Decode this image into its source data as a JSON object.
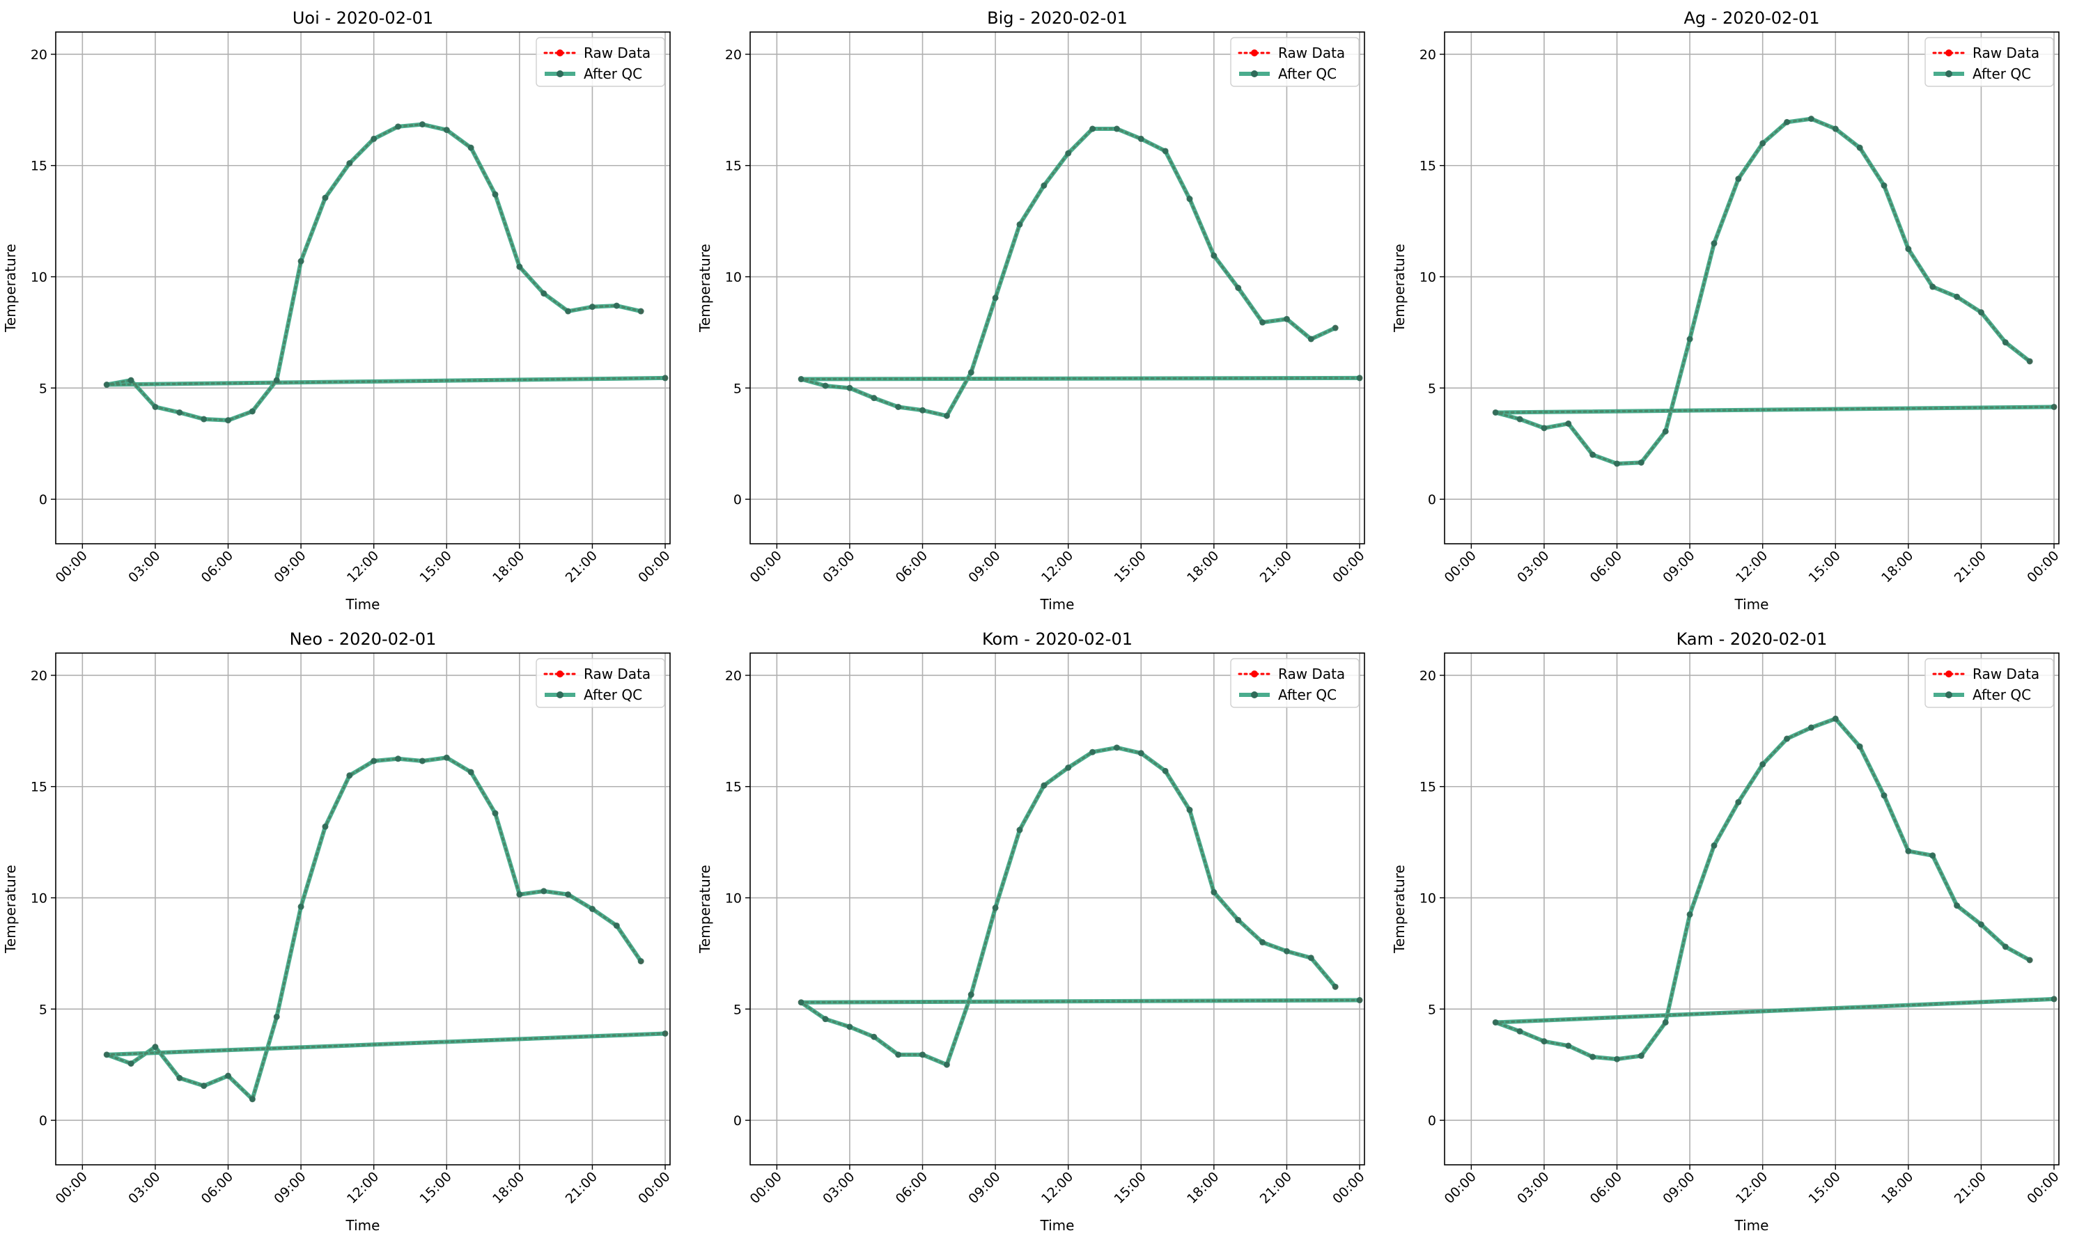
{
  "colors": {
    "raw": "#ff0000",
    "qc": "#2a9d79",
    "grid": "#b0b0b0",
    "axes": "#000000",
    "legend_border": "#d0d0d0"
  },
  "chart_data": [
    {
      "type": "line",
      "title": "Uoi - 2020-02-01",
      "xlabel": "Time",
      "ylabel": "Temperature",
      "x": [
        "00:00",
        "01:00",
        "02:00",
        "03:00",
        "04:00",
        "05:00",
        "06:00",
        "07:00",
        "08:00",
        "09:00",
        "10:00",
        "11:00",
        "12:00",
        "13:00",
        "14:00",
        "15:00",
        "16:00",
        "17:00",
        "18:00",
        "19:00",
        "20:00",
        "21:00",
        "22:00",
        "23:00"
      ],
      "xticks": [
        "00:00",
        "03:00",
        "06:00",
        "09:00",
        "12:00",
        "15:00",
        "18:00",
        "21:00",
        "00:00"
      ],
      "yticks": [
        0,
        5,
        10,
        15,
        20
      ],
      "ylim": [
        -2,
        21
      ],
      "grid": true,
      "legend_position": "upper right",
      "series": [
        {
          "name": "Raw Data",
          "style": "dotted",
          "values": [
            5.45,
            5.15,
            5.35,
            4.15,
            3.9,
            3.6,
            3.55,
            3.95,
            5.35,
            10.7,
            13.55,
            15.1,
            16.2,
            16.75,
            16.85,
            16.6,
            15.8,
            13.7,
            10.45,
            9.25,
            8.45,
            8.65,
            8.7,
            8.45
          ]
        },
        {
          "name": "After QC",
          "style": "solid",
          "values": [
            5.45,
            5.15,
            5.35,
            4.15,
            3.9,
            3.6,
            3.55,
            3.95,
            5.35,
            10.7,
            13.55,
            15.1,
            16.2,
            16.75,
            16.85,
            16.6,
            15.8,
            13.7,
            10.45,
            9.25,
            8.45,
            8.65,
            8.7,
            8.45
          ]
        }
      ]
    },
    {
      "type": "line",
      "title": "Big - 2020-02-01",
      "xlabel": "Time",
      "ylabel": "Temperature",
      "x": [
        "00:00",
        "01:00",
        "02:00",
        "03:00",
        "04:00",
        "05:00",
        "06:00",
        "07:00",
        "08:00",
        "09:00",
        "10:00",
        "11:00",
        "12:00",
        "13:00",
        "14:00",
        "15:00",
        "16:00",
        "17:00",
        "18:00",
        "19:00",
        "20:00",
        "21:00",
        "22:00",
        "23:00"
      ],
      "xticks": [
        "00:00",
        "03:00",
        "06:00",
        "09:00",
        "12:00",
        "15:00",
        "18:00",
        "21:00",
        "00:00"
      ],
      "yticks": [
        0,
        5,
        10,
        15,
        20
      ],
      "ylim": [
        -2,
        21
      ],
      "grid": true,
      "legend_position": "upper right",
      "series": [
        {
          "name": "Raw Data",
          "style": "dotted",
          "values": [
            5.45,
            5.4,
            5.1,
            5.0,
            4.55,
            4.15,
            4.0,
            3.75,
            5.7,
            9.05,
            12.35,
            14.1,
            15.55,
            16.65,
            16.65,
            16.2,
            15.65,
            13.5,
            10.95,
            9.5,
            7.95,
            8.1,
            7.2,
            7.7
          ]
        },
        {
          "name": "After QC",
          "style": "solid",
          "values": [
            5.45,
            5.4,
            5.1,
            5.0,
            4.55,
            4.15,
            4.0,
            3.75,
            5.7,
            9.05,
            12.35,
            14.1,
            15.55,
            16.65,
            16.65,
            16.2,
            15.65,
            13.5,
            10.95,
            9.5,
            7.95,
            8.1,
            7.2,
            7.7
          ]
        }
      ]
    },
    {
      "type": "line",
      "title": "Ag - 2020-02-01",
      "xlabel": "Time",
      "ylabel": "Temperature",
      "x": [
        "00:00",
        "01:00",
        "02:00",
        "03:00",
        "04:00",
        "05:00",
        "06:00",
        "07:00",
        "08:00",
        "09:00",
        "10:00",
        "11:00",
        "12:00",
        "13:00",
        "14:00",
        "15:00",
        "16:00",
        "17:00",
        "18:00",
        "19:00",
        "20:00",
        "21:00",
        "22:00",
        "23:00"
      ],
      "xticks": [
        "00:00",
        "03:00",
        "06:00",
        "09:00",
        "12:00",
        "15:00",
        "18:00",
        "21:00",
        "00:00"
      ],
      "yticks": [
        0,
        5,
        10,
        15,
        20
      ],
      "ylim": [
        -2,
        21
      ],
      "grid": true,
      "legend_position": "upper right",
      "series": [
        {
          "name": "Raw Data",
          "style": "dotted",
          "values": [
            4.15,
            3.9,
            3.6,
            3.2,
            3.4,
            2.0,
            1.6,
            1.65,
            3.05,
            7.2,
            11.5,
            14.4,
            16.0,
            16.95,
            17.1,
            16.65,
            15.8,
            14.1,
            11.25,
            9.55,
            9.1,
            8.4,
            7.05,
            6.2
          ]
        },
        {
          "name": "After QC",
          "style": "solid",
          "values": [
            4.15,
            3.9,
            3.6,
            3.2,
            3.4,
            2.0,
            1.6,
            1.65,
            3.05,
            7.2,
            11.5,
            14.4,
            16.0,
            16.95,
            17.1,
            16.65,
            15.8,
            14.1,
            11.25,
            9.55,
            9.1,
            8.4,
            7.05,
            6.2
          ]
        }
      ]
    },
    {
      "type": "line",
      "title": "Neo - 2020-02-01",
      "xlabel": "Time",
      "ylabel": "Temperature",
      "x": [
        "00:00",
        "01:00",
        "02:00",
        "03:00",
        "04:00",
        "05:00",
        "06:00",
        "07:00",
        "08:00",
        "09:00",
        "10:00",
        "11:00",
        "12:00",
        "13:00",
        "14:00",
        "15:00",
        "16:00",
        "17:00",
        "18:00",
        "19:00",
        "20:00",
        "21:00",
        "22:00",
        "23:00"
      ],
      "xticks": [
        "00:00",
        "03:00",
        "06:00",
        "09:00",
        "12:00",
        "15:00",
        "18:00",
        "21:00",
        "00:00"
      ],
      "yticks": [
        0,
        5,
        10,
        15,
        20
      ],
      "ylim": [
        -2,
        21
      ],
      "grid": true,
      "legend_position": "upper right",
      "series": [
        {
          "name": "Raw Data",
          "style": "dotted",
          "values": [
            3.9,
            2.95,
            2.55,
            3.3,
            1.9,
            1.55,
            2.0,
            0.95,
            4.65,
            9.6,
            13.2,
            15.5,
            16.15,
            16.25,
            16.15,
            16.3,
            15.65,
            13.8,
            10.15,
            10.3,
            10.15,
            9.5,
            8.75,
            7.15
          ]
        },
        {
          "name": "After QC",
          "style": "solid",
          "values": [
            3.9,
            2.95,
            2.55,
            3.3,
            1.9,
            1.55,
            2.0,
            0.95,
            4.65,
            9.6,
            13.2,
            15.5,
            16.15,
            16.25,
            16.15,
            16.3,
            15.65,
            13.8,
            10.15,
            10.3,
            10.15,
            9.5,
            8.75,
            7.15
          ]
        }
      ]
    },
    {
      "type": "line",
      "title": "Kom - 2020-02-01",
      "xlabel": "Time",
      "ylabel": "Temperature",
      "x": [
        "00:00",
        "01:00",
        "02:00",
        "03:00",
        "04:00",
        "05:00",
        "06:00",
        "07:00",
        "08:00",
        "09:00",
        "10:00",
        "11:00",
        "12:00",
        "13:00",
        "14:00",
        "15:00",
        "16:00",
        "17:00",
        "18:00",
        "19:00",
        "20:00",
        "21:00",
        "22:00",
        "23:00"
      ],
      "xticks": [
        "00:00",
        "03:00",
        "06:00",
        "09:00",
        "12:00",
        "15:00",
        "18:00",
        "21:00",
        "00:00"
      ],
      "yticks": [
        0,
        5,
        10,
        15,
        20
      ],
      "ylim": [
        -2,
        21
      ],
      "grid": true,
      "legend_position": "upper right",
      "series": [
        {
          "name": "Raw Data",
          "style": "dotted",
          "values": [
            5.4,
            5.3,
            4.55,
            4.2,
            3.75,
            2.95,
            2.95,
            2.5,
            5.65,
            9.55,
            13.05,
            15.05,
            15.85,
            16.55,
            16.75,
            16.5,
            15.7,
            13.95,
            10.25,
            9.0,
            8.0,
            7.6,
            7.3,
            6.0
          ]
        },
        {
          "name": "After QC",
          "style": "solid",
          "values": [
            5.4,
            5.3,
            4.55,
            4.2,
            3.75,
            2.95,
            2.95,
            2.5,
            5.65,
            9.55,
            13.05,
            15.05,
            15.85,
            16.55,
            16.75,
            16.5,
            15.7,
            13.95,
            10.25,
            9.0,
            8.0,
            7.6,
            7.3,
            6.0
          ]
        }
      ]
    },
    {
      "type": "line",
      "title": "Kam - 2020-02-01",
      "xlabel": "Time",
      "ylabel": "Temperature",
      "x": [
        "00:00",
        "01:00",
        "02:00",
        "03:00",
        "04:00",
        "05:00",
        "06:00",
        "07:00",
        "08:00",
        "09:00",
        "10:00",
        "11:00",
        "12:00",
        "13:00",
        "14:00",
        "15:00",
        "16:00",
        "17:00",
        "18:00",
        "19:00",
        "20:00",
        "21:00",
        "22:00",
        "23:00"
      ],
      "xticks": [
        "00:00",
        "03:00",
        "06:00",
        "09:00",
        "12:00",
        "15:00",
        "18:00",
        "21:00",
        "00:00"
      ],
      "yticks": [
        0,
        5,
        10,
        15,
        20
      ],
      "ylim": [
        -2,
        21
      ],
      "grid": true,
      "legend_position": "upper right",
      "series": [
        {
          "name": "Raw Data",
          "style": "dotted",
          "values": [
            5.45,
            4.4,
            4.0,
            3.55,
            3.35,
            2.85,
            2.75,
            2.9,
            4.4,
            9.25,
            12.35,
            14.3,
            16.0,
            17.15,
            17.65,
            18.05,
            16.8,
            14.6,
            12.1,
            11.9,
            9.65,
            8.8,
            7.8,
            7.2
          ]
        },
        {
          "name": "After QC",
          "style": "solid",
          "values": [
            5.45,
            4.4,
            4.0,
            3.55,
            3.35,
            2.85,
            2.75,
            2.9,
            4.4,
            9.25,
            12.35,
            14.3,
            16.0,
            17.15,
            17.65,
            18.05,
            16.8,
            14.6,
            12.1,
            11.9,
            9.65,
            8.8,
            7.8,
            7.2
          ]
        }
      ]
    }
  ]
}
